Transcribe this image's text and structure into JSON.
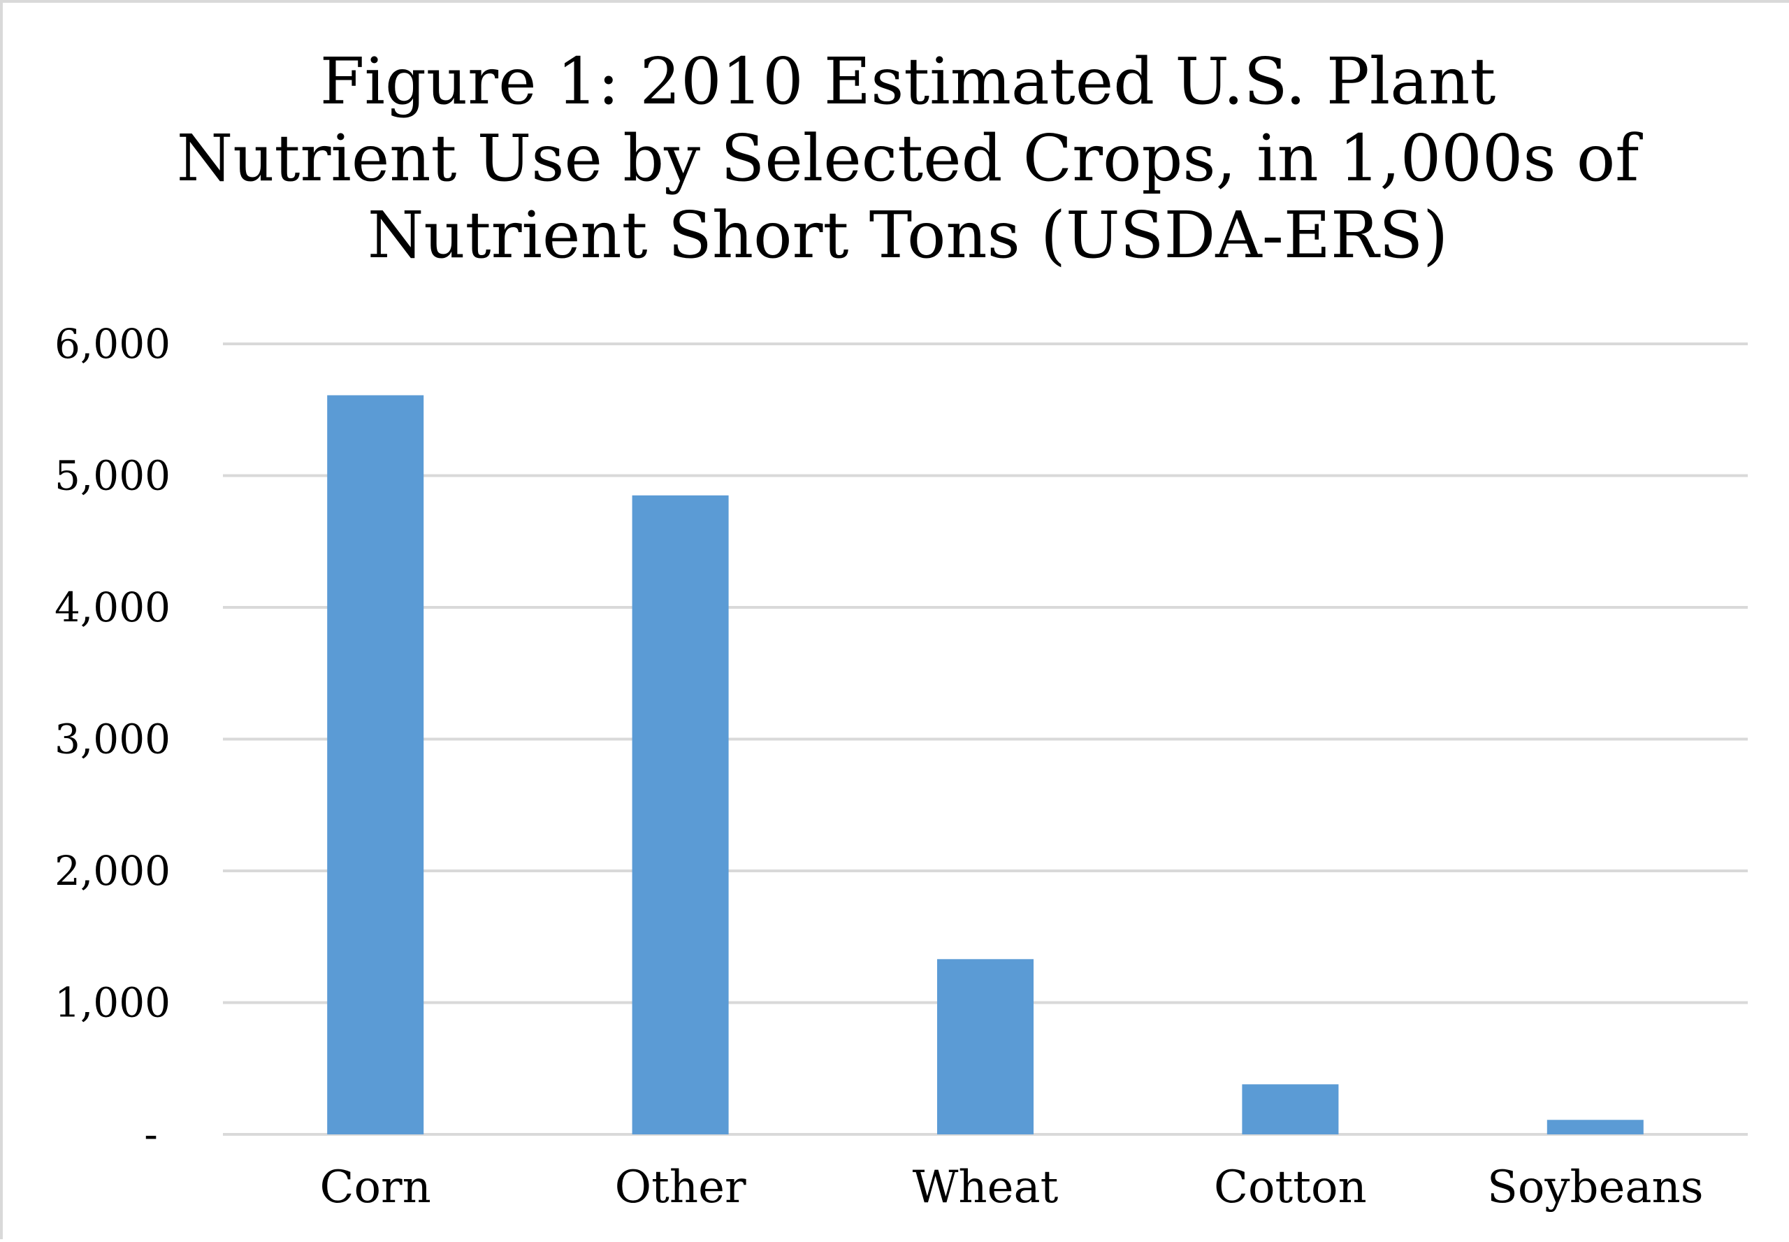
{
  "chart_data": {
    "type": "bar",
    "title": "Figure 1: 2010 Estimated U.S. Plant Nutrient Use by Selected Crops, in 1,000s of Nutrient Short Tons (USDA-ERS)",
    "xlabel": "",
    "ylabel": "",
    "categories": [
      "Corn",
      "Other",
      "Wheat",
      "Cotton",
      "Soybeans"
    ],
    "values": [
      5610,
      4850,
      1330,
      380,
      110
    ],
    "ylim": [
      0,
      6000
    ],
    "yticks": [
      0,
      1000,
      2000,
      3000,
      4000,
      5000,
      6000
    ],
    "ytick_labels": [
      "-",
      "1,000",
      "2,000",
      "3,000",
      "4,000",
      "5,000",
      "6,000"
    ],
    "grid": true,
    "legend": "none",
    "bar_color": "#5b9bd5",
    "grid_color": "#d9d9d9"
  }
}
